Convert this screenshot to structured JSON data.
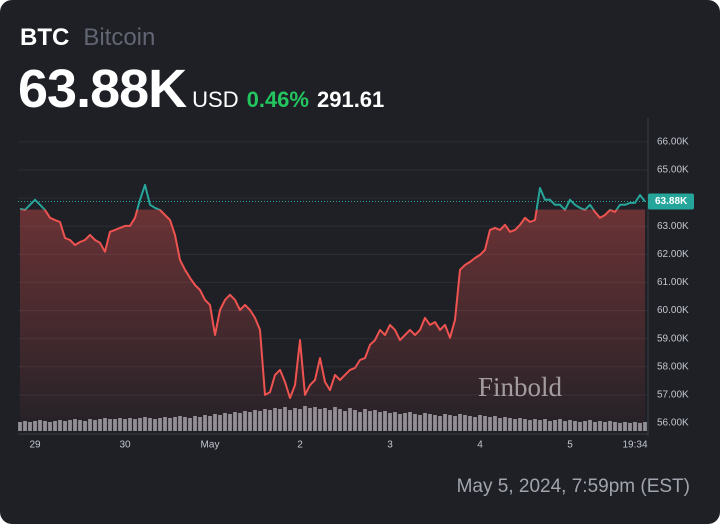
{
  "chart_data": {
    "type": "line",
    "title": "BTC",
    "subtitle": "Bitcoin",
    "last_price": {
      "value": 63880,
      "label": "63.88K"
    },
    "currency": "USD",
    "change_percent": {
      "value": 0.46,
      "label": "0.46%"
    },
    "change": 291.61,
    "timestamp": "May 5, 2024, 7:59pm (EST)",
    "watermark": "Finbold",
    "up_color": "#26a69a",
    "down_color": "#ef5350",
    "volume_color": "#a3a6ae",
    "grid": true,
    "ylim": [
      55680,
      66600
    ],
    "yticks": [
      {
        "value": 56000,
        "label": "56.00K"
      },
      {
        "value": 57000,
        "label": "57.00K"
      },
      {
        "value": 58000,
        "label": "58.00K"
      },
      {
        "value": 59000,
        "label": "59.00K"
      },
      {
        "value": 60000,
        "label": "60.00K"
      },
      {
        "value": 61000,
        "label": "61.00K"
      },
      {
        "value": 62000,
        "label": "62.00K"
      },
      {
        "value": 63000,
        "label": "63.00K"
      },
      {
        "value": 64000,
        "label": "64.00K"
      },
      {
        "value": 65000,
        "label": "65.00K"
      },
      {
        "value": 66000,
        "label": "66.00K"
      }
    ],
    "categories": [
      null,
      null,
      null,
      "29",
      null,
      null,
      null,
      null,
      null,
      null,
      null,
      null,
      null,
      null,
      null,
      null,
      null,
      null,
      null,
      null,
      null,
      "30",
      null,
      null,
      null,
      null,
      null,
      null,
      null,
      null,
      null,
      null,
      null,
      null,
      null,
      null,
      null,
      null,
      "May",
      null,
      null,
      null,
      null,
      null,
      null,
      null,
      null,
      null,
      null,
      null,
      null,
      null,
      null,
      null,
      null,
      null,
      "2",
      null,
      null,
      null,
      null,
      null,
      null,
      null,
      null,
      null,
      null,
      null,
      null,
      null,
      null,
      null,
      null,
      null,
      "3",
      null,
      null,
      null,
      null,
      null,
      null,
      null,
      null,
      null,
      null,
      null,
      null,
      null,
      null,
      null,
      null,
      null,
      "4",
      null,
      null,
      null,
      null,
      null,
      null,
      null,
      null,
      null,
      null,
      null,
      null,
      null,
      null,
      null,
      null,
      null,
      "5",
      null,
      null,
      null,
      null,
      null,
      null,
      null,
      null,
      null,
      null,
      null,
      null,
      "19:34",
      null,
      null
    ],
    "values": [
      63620,
      63580,
      63760,
      63940,
      63760,
      63580,
      63300,
      63220,
      63150,
      62580,
      62510,
      62330,
      62440,
      62510,
      62690,
      62510,
      62410,
      62090,
      62800,
      62870,
      62940,
      63010,
      63010,
      63300,
      63940,
      64470,
      63760,
      63650,
      63580,
      63400,
      63220,
      62690,
      61800,
      61450,
      61160,
      60910,
      60730,
      60380,
      60200,
      59130,
      60020,
      60380,
      60560,
      60380,
      60020,
      60200,
      60020,
      59740,
      59310,
      57000,
      57100,
      57710,
      57890,
      57460,
      56890,
      57350,
      58950,
      57000,
      57350,
      57530,
      58310,
      57460,
      57170,
      57710,
      57530,
      57710,
      57890,
      57960,
      58240,
      58310,
      58780,
      58950,
      59310,
      59130,
      59490,
      59310,
      58950,
      59130,
      59310,
      59130,
      59310,
      59740,
      59490,
      59590,
      59310,
      59490,
      59030,
      59670,
      61450,
      61620,
      61730,
      61870,
      61980,
      62160,
      62870,
      62940,
      62870,
      63050,
      62800,
      62870,
      63050,
      63300,
      63150,
      63220,
      64360,
      63940,
      63940,
      63760,
      63760,
      63580,
      63940,
      63760,
      63650,
      63580,
      63760,
      63510,
      63300,
      63400,
      63580,
      63510,
      63760,
      63760,
      63830,
      63830,
      64110,
      63880
    ],
    "volume_lim": [
      0,
      30
    ],
    "volume": [
      9,
      10,
      9,
      10,
      11,
      10,
      9,
      10,
      11,
      10,
      11,
      12,
      11,
      10,
      12,
      11,
      12,
      13,
      12,
      12,
      13,
      12,
      13,
      12,
      13,
      14,
      13,
      12,
      13,
      14,
      13,
      14,
      15,
      14,
      13,
      15,
      14,
      16,
      15,
      17,
      16,
      18,
      17,
      19,
      18,
      20,
      19,
      21,
      20,
      22,
      21,
      23,
      22,
      24,
      21,
      23,
      22,
      25,
      23,
      24,
      22,
      23,
      21,
      24,
      22,
      20,
      23,
      21,
      19,
      22,
      20,
      21,
      19,
      20,
      18,
      19,
      17,
      18,
      19,
      17,
      16,
      18,
      17,
      16,
      15,
      17,
      16,
      15,
      17,
      16,
      15,
      14,
      16,
      15,
      14,
      15,
      13,
      14,
      13,
      12,
      13,
      12,
      11,
      12,
      11,
      12,
      10,
      11,
      12,
      10,
      11,
      10,
      9,
      10,
      11,
      9,
      10,
      9,
      10,
      9,
      8,
      9,
      8,
      9,
      8,
      9
    ]
  }
}
